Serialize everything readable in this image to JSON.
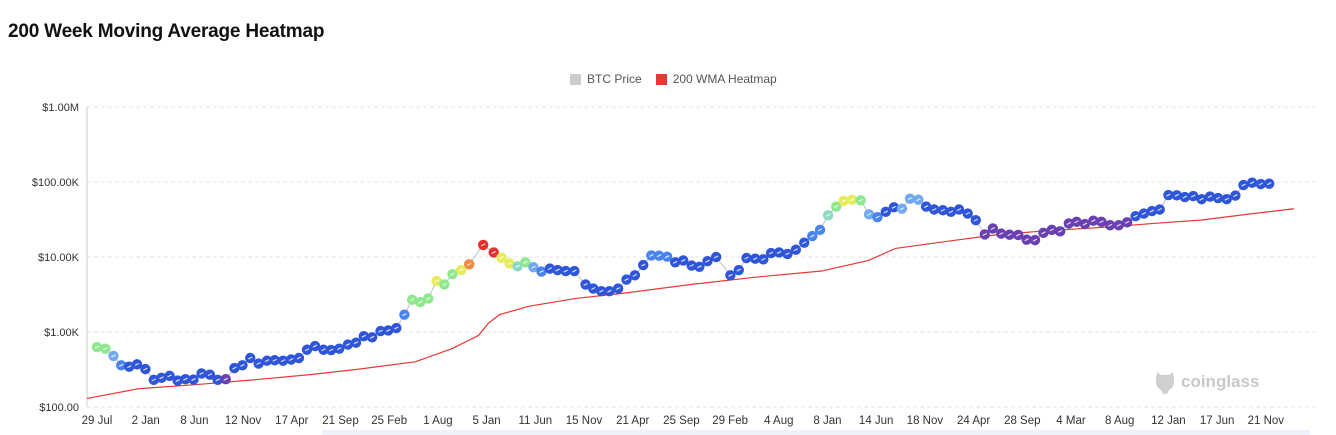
{
  "title": "200 Week Moving Average Heatmap",
  "legend": [
    {
      "label": "BTC Price",
      "color": "#cccccc"
    },
    {
      "label": "200 WMA Heatmap",
      "color": "#e53935"
    }
  ],
  "watermark": "coinglass",
  "heat_colors": {
    "purple": "#6a3fb0",
    "dblue": "#2f55d9",
    "blue": "#4a83ee",
    "lblue": "#72aaf0",
    "teal": "#8fd8c4",
    "green": "#8fe88f",
    "yellow": "#e6ec5e",
    "orange": "#ef8a3e",
    "red": "#e53030"
  },
  "chart_data": {
    "type": "line",
    "title": "200 Week Moving Average Heatmap",
    "xlabel": "",
    "ylabel": "",
    "y_scale": "log",
    "ylim": [
      100,
      1000000
    ],
    "y_ticks": [
      {
        "value": 1000000,
        "label": "$1.00M"
      },
      {
        "value": 100000,
        "label": "$100.00K"
      },
      {
        "value": 10000,
        "label": "$10.00K"
      },
      {
        "value": 1000,
        "label": "$1.00K"
      },
      {
        "value": 100,
        "label": "$100.00"
      }
    ],
    "x_ticks": [
      {
        "date": "2014-07-29",
        "label": "29 Jul"
      },
      {
        "date": "2015-01-02",
        "label": "2 Jan"
      },
      {
        "date": "2015-06-08",
        "label": "8 Jun"
      },
      {
        "date": "2015-11-12",
        "label": "12 Nov"
      },
      {
        "date": "2016-04-17",
        "label": "17 Apr"
      },
      {
        "date": "2016-09-21",
        "label": "21 Sep"
      },
      {
        "date": "2017-02-25",
        "label": "25 Feb"
      },
      {
        "date": "2017-08-01",
        "label": "1 Aug"
      },
      {
        "date": "2018-01-05",
        "label": "5 Jan"
      },
      {
        "date": "2018-06-11",
        "label": "11 Jun"
      },
      {
        "date": "2018-11-15",
        "label": "15 Nov"
      },
      {
        "date": "2019-04-21",
        "label": "21 Apr"
      },
      {
        "date": "2019-09-25",
        "label": "25 Sep"
      },
      {
        "date": "2020-02-29",
        "label": "29 Feb"
      },
      {
        "date": "2020-08-04",
        "label": "4 Aug"
      },
      {
        "date": "2021-01-08",
        "label": "8 Jan"
      },
      {
        "date": "2021-06-14",
        "label": "14 Jun"
      },
      {
        "date": "2021-11-18",
        "label": "18 Nov"
      },
      {
        "date": "2022-04-24",
        "label": "24 Apr"
      },
      {
        "date": "2022-09-28",
        "label": "28 Sep"
      },
      {
        "date": "2023-03-04",
        "label": "4 Mar"
      },
      {
        "date": "2023-08-08",
        "label": "8 Aug"
      },
      {
        "date": "2024-01-12",
        "label": "12 Jan"
      },
      {
        "date": "2024-06-17",
        "label": "17 Jun"
      },
      {
        "date": "2024-11-21",
        "label": "21 Nov"
      }
    ],
    "grid": true,
    "legend_position": "top-center",
    "series": [
      {
        "name": "BTC Price",
        "color": "#cccccc",
        "points": [
          [
            "2014-07-29",
            630,
            "green"
          ],
          [
            "2014-08-25",
            600,
            "green"
          ],
          [
            "2014-09-20",
            480,
            "lblue"
          ],
          [
            "2014-10-15",
            360,
            "blue"
          ],
          [
            "2014-11-10",
            345,
            "dblue"
          ],
          [
            "2014-12-05",
            370,
            "dblue"
          ],
          [
            "2015-01-01",
            320,
            "dblue"
          ],
          [
            "2015-01-28",
            230,
            "dblue"
          ],
          [
            "2015-02-22",
            245,
            "dblue"
          ],
          [
            "2015-03-20",
            260,
            "dblue"
          ],
          [
            "2015-04-15",
            225,
            "dblue"
          ],
          [
            "2015-05-10",
            235,
            "dblue"
          ],
          [
            "2015-06-05",
            232,
            "dblue"
          ],
          [
            "2015-07-01",
            280,
            "dblue"
          ],
          [
            "2015-07-28",
            270,
            "dblue"
          ],
          [
            "2015-08-22",
            230,
            "dblue"
          ],
          [
            "2015-09-17",
            235,
            "purple"
          ],
          [
            "2015-10-15",
            330,
            "dblue"
          ],
          [
            "2015-11-10",
            360,
            "dblue"
          ],
          [
            "2015-12-05",
            450,
            "dblue"
          ],
          [
            "2016-01-01",
            380,
            "dblue"
          ],
          [
            "2016-01-28",
            415,
            "dblue"
          ],
          [
            "2016-02-22",
            420,
            "dblue"
          ],
          [
            "2016-03-20",
            415,
            "dblue"
          ],
          [
            "2016-04-15",
            430,
            "dblue"
          ],
          [
            "2016-05-10",
            450,
            "dblue"
          ],
          [
            "2016-06-05",
            580,
            "dblue"
          ],
          [
            "2016-07-01",
            650,
            "dblue"
          ],
          [
            "2016-07-28",
            580,
            "dblue"
          ],
          [
            "2016-08-22",
            575,
            "dblue"
          ],
          [
            "2016-09-17",
            600,
            "dblue"
          ],
          [
            "2016-10-15",
            680,
            "dblue"
          ],
          [
            "2016-11-10",
            720,
            "dblue"
          ],
          [
            "2016-12-05",
            880,
            "dblue"
          ],
          [
            "2017-01-01",
            850,
            "dblue"
          ],
          [
            "2017-01-28",
            1030,
            "dblue"
          ],
          [
            "2017-02-22",
            1050,
            "dblue"
          ],
          [
            "2017-03-20",
            1130,
            "dblue"
          ],
          [
            "2017-04-15",
            1700,
            "blue"
          ],
          [
            "2017-05-10",
            2700,
            "green"
          ],
          [
            "2017-06-05",
            2500,
            "green"
          ],
          [
            "2017-07-01",
            2800,
            "green"
          ],
          [
            "2017-07-28",
            4800,
            "yellow"
          ],
          [
            "2017-08-22",
            4300,
            "green"
          ],
          [
            "2017-09-17",
            5900,
            "green"
          ],
          [
            "2017-10-15",
            6700,
            "yellow"
          ],
          [
            "2017-11-10",
            8000,
            "orange"
          ],
          [
            "2017-12-25",
            14500,
            "red"
          ],
          [
            "2018-01-28",
            11500,
            "red"
          ],
          [
            "2018-02-22",
            9800,
            "yellow"
          ],
          [
            "2018-03-20",
            8200,
            "yellow"
          ],
          [
            "2018-04-15",
            7500,
            "teal"
          ],
          [
            "2018-05-10",
            8500,
            "green"
          ],
          [
            "2018-06-05",
            7300,
            "lblue"
          ],
          [
            "2018-07-01",
            6400,
            "blue"
          ],
          [
            "2018-07-28",
            7000,
            "dblue"
          ],
          [
            "2018-08-22",
            6700,
            "dblue"
          ],
          [
            "2018-09-17",
            6500,
            "dblue"
          ],
          [
            "2018-10-15",
            6500,
            "dblue"
          ],
          [
            "2018-11-20",
            4300,
            "dblue"
          ],
          [
            "2018-12-15",
            3800,
            "dblue"
          ],
          [
            "2019-01-10",
            3500,
            "dblue"
          ],
          [
            "2019-02-05",
            3500,
            "dblue"
          ],
          [
            "2019-03-05",
            3800,
            "dblue"
          ],
          [
            "2019-04-01",
            5000,
            "dblue"
          ],
          [
            "2019-04-28",
            5700,
            "dblue"
          ],
          [
            "2019-05-25",
            7800,
            "dblue"
          ],
          [
            "2019-06-20",
            10500,
            "blue"
          ],
          [
            "2019-07-15",
            10400,
            "blue"
          ],
          [
            "2019-08-10",
            10100,
            "blue"
          ],
          [
            "2019-09-05",
            8500,
            "dblue"
          ],
          [
            "2019-10-01",
            9000,
            "dblue"
          ],
          [
            "2019-10-28",
            7700,
            "dblue"
          ],
          [
            "2019-11-22",
            7400,
            "dblue"
          ],
          [
            "2019-12-18",
            8800,
            "dblue"
          ],
          [
            "2020-01-15",
            10000,
            "dblue"
          ],
          [
            "2020-03-01",
            5700,
            "dblue"
          ],
          [
            "2020-03-28",
            6700,
            "dblue"
          ],
          [
            "2020-04-22",
            9700,
            "dblue"
          ],
          [
            "2020-05-20",
            9500,
            "dblue"
          ],
          [
            "2020-06-15",
            9300,
            "dblue"
          ],
          [
            "2020-07-10",
            11300,
            "dblue"
          ],
          [
            "2020-08-05",
            11500,
            "dblue"
          ],
          [
            "2020-09-01",
            11000,
            "dblue"
          ],
          [
            "2020-09-28",
            12500,
            "dblue"
          ],
          [
            "2020-10-25",
            15500,
            "dblue"
          ],
          [
            "2020-11-20",
            19000,
            "blue"
          ],
          [
            "2020-12-15",
            23000,
            "blue"
          ],
          [
            "2021-01-10",
            36000,
            "teal"
          ],
          [
            "2021-02-05",
            47000,
            "green"
          ],
          [
            "2021-03-01",
            56000,
            "yellow"
          ],
          [
            "2021-03-28",
            58000,
            "yellow"
          ],
          [
            "2021-04-25",
            57000,
            "green"
          ],
          [
            "2021-05-22",
            37000,
            "lblue"
          ],
          [
            "2021-06-18",
            34000,
            "blue"
          ],
          [
            "2021-07-15",
            40000,
            "dblue"
          ],
          [
            "2021-08-10",
            46000,
            "dblue"
          ],
          [
            "2021-09-05",
            44000,
            "lblue"
          ],
          [
            "2021-10-01",
            60000,
            "lblue"
          ],
          [
            "2021-10-28",
            58000,
            "lblue"
          ],
          [
            "2021-11-22",
            47000,
            "dblue"
          ],
          [
            "2021-12-18",
            43000,
            "dblue"
          ],
          [
            "2022-01-15",
            42000,
            "dblue"
          ],
          [
            "2022-02-10",
            40000,
            "dblue"
          ],
          [
            "2022-03-08",
            43000,
            "dblue"
          ],
          [
            "2022-04-05",
            38000,
            "dblue"
          ],
          [
            "2022-05-01",
            31000,
            "dblue"
          ],
          [
            "2022-05-30",
            20000,
            "purple"
          ],
          [
            "2022-06-25",
            24000,
            "purple"
          ],
          [
            "2022-07-22",
            20500,
            "purple"
          ],
          [
            "2022-08-18",
            19800,
            "purple"
          ],
          [
            "2022-09-15",
            19700,
            "purple"
          ],
          [
            "2022-10-12",
            17000,
            "purple"
          ],
          [
            "2022-11-08",
            16800,
            "purple"
          ],
          [
            "2022-12-05",
            21000,
            "purple"
          ],
          [
            "2023-01-01",
            23000,
            "purple"
          ],
          [
            "2023-01-28",
            22000,
            "purple"
          ],
          [
            "2023-02-25",
            28000,
            "purple"
          ],
          [
            "2023-03-22",
            29500,
            "purple"
          ],
          [
            "2023-04-18",
            27500,
            "purple"
          ],
          [
            "2023-05-15",
            30500,
            "purple"
          ],
          [
            "2023-06-10",
            29500,
            "purple"
          ],
          [
            "2023-07-08",
            26500,
            "purple"
          ],
          [
            "2023-08-05",
            26500,
            "purple"
          ],
          [
            "2023-09-01",
            29000,
            "purple"
          ],
          [
            "2023-09-28",
            35000,
            "dblue"
          ],
          [
            "2023-10-25",
            38000,
            "dblue"
          ],
          [
            "2023-11-20",
            41000,
            "dblue"
          ],
          [
            "2023-12-15",
            43000,
            "dblue"
          ],
          [
            "2024-01-12",
            67000,
            "dblue"
          ],
          [
            "2024-02-08",
            66500,
            "dblue"
          ],
          [
            "2024-03-05",
            63000,
            "dblue"
          ],
          [
            "2024-04-01",
            65000,
            "dblue"
          ],
          [
            "2024-04-28",
            59000,
            "dblue"
          ],
          [
            "2024-05-25",
            64000,
            "dblue"
          ],
          [
            "2024-06-20",
            61000,
            "dblue"
          ],
          [
            "2024-07-18",
            59000,
            "dblue"
          ],
          [
            "2024-08-15",
            66000,
            "dblue"
          ],
          [
            "2024-09-10",
            91000,
            "dblue"
          ],
          [
            "2024-10-08",
            98000,
            "dblue"
          ],
          [
            "2024-11-05",
            94000,
            "dblue"
          ],
          [
            "2024-12-02",
            95000,
            "dblue"
          ]
        ]
      },
      {
        "name": "200 WMA Heatmap",
        "color": "#e53935",
        "points": [
          [
            "2014-06-27",
            130
          ],
          [
            "2014-12-10",
            175
          ],
          [
            "2015-06-20",
            200
          ],
          [
            "2015-12-15",
            230
          ],
          [
            "2016-06-15",
            270
          ],
          [
            "2016-11-20",
            320
          ],
          [
            "2017-05-20",
            400
          ],
          [
            "2017-09-15",
            600
          ],
          [
            "2017-12-10",
            900
          ],
          [
            "2018-01-10",
            1300
          ],
          [
            "2018-02-15",
            1700
          ],
          [
            "2018-05-20",
            2200
          ],
          [
            "2018-10-20",
            2800
          ],
          [
            "2019-03-25",
            3300
          ],
          [
            "2019-10-25",
            4300
          ],
          [
            "2020-05-25",
            5400
          ],
          [
            "2020-12-20",
            6500
          ],
          [
            "2021-05-20",
            9000
          ],
          [
            "2021-08-15",
            13000
          ],
          [
            "2022-01-20",
            16000
          ],
          [
            "2022-06-25",
            19500
          ],
          [
            "2022-11-20",
            22000
          ],
          [
            "2023-06-25",
            25000
          ],
          [
            "2023-11-25",
            28000
          ],
          [
            "2024-04-25",
            31000
          ],
          [
            "2024-09-20",
            37000
          ],
          [
            "2025-02-20",
            44000
          ]
        ]
      }
    ]
  }
}
